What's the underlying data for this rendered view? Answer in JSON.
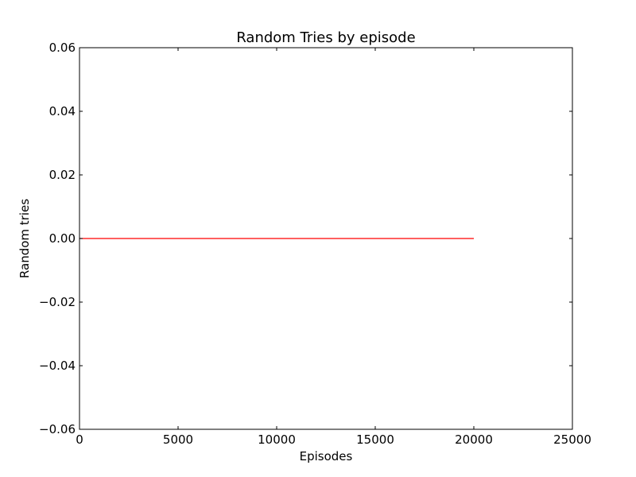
{
  "chart_data": {
    "type": "line",
    "title": "Random Tries by episode",
    "xlabel": "Episodes",
    "ylabel": "Random tries",
    "xlim": [
      0,
      25000
    ],
    "ylim": [
      -0.06,
      0.06
    ],
    "xticks": [
      0,
      5000,
      10000,
      15000,
      20000,
      25000
    ],
    "xtick_labels": [
      "0",
      "5000",
      "10000",
      "15000",
      "20000",
      "25000"
    ],
    "yticks": [
      -0.06,
      -0.04,
      -0.02,
      0.0,
      0.02,
      0.04,
      0.06
    ],
    "ytick_labels": [
      "−0.06",
      "−0.04",
      "−0.02",
      "0.00",
      "0.02",
      "0.04",
      "0.06"
    ],
    "grid": false,
    "series": [
      {
        "color": "#ff0000",
        "x": [
          0,
          20000
        ],
        "y": [
          0,
          0
        ]
      }
    ]
  }
}
